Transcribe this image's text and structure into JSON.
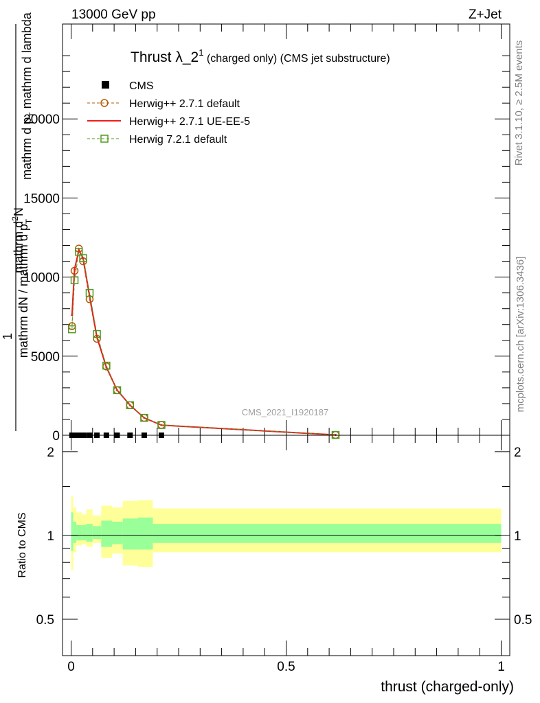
{
  "header": {
    "energy": "13000 GeV pp",
    "process": "Z+Jet"
  },
  "side_labels": {
    "rivet": "Rivet 3.1.10, ≥ 2.5M events",
    "mcplots": "mcplots.cern.ch [arXiv:1306.3436]"
  },
  "watermark": "CMS_2021_I1920187",
  "chart_data": [
    {
      "type": "line",
      "title": {
        "main": "Thrust λ_2",
        "sup": "1",
        "sub": " (charged only) (CMS jet substructure)"
      },
      "ylabel_parts": [
        "mathrm d",
        "2",
        "N",
        "mathrm d p",
        "T",
        "mathrm d lambda",
        "1",
        "mathrm d",
        "N",
        "mathrm d p",
        "T"
      ],
      "xlim": [
        -0.02,
        1.02
      ],
      "ylim": [
        0,
        26000
      ],
      "y_ticks": [
        0,
        5000,
        10000,
        15000,
        20000
      ],
      "y_tick_labels": [
        "0",
        "5000",
        "10000",
        "15000",
        "20000"
      ],
      "legend": {
        "position": "top-left",
        "entries": [
          "CMS",
          "Herwig++ 2.7.1 default",
          "Herwig++ 2.7.1 UE-EE-5",
          "Herwig 7.2.1 default"
        ]
      },
      "series": [
        {
          "name": "CMS",
          "marker": "filled-square",
          "color": "#000000",
          "x": [
            0.002,
            0.008,
            0.015,
            0.022,
            0.03,
            0.043,
            0.06,
            0.082,
            0.107,
            0.137,
            0.17,
            0.21
          ],
          "y": [
            0,
            0,
            0,
            0,
            0,
            0,
            0,
            0,
            0,
            0,
            0,
            0
          ]
        },
        {
          "name": "Herwig++ 2.7.1 default",
          "marker": "open-circle",
          "color": "#b35900",
          "x": [
            0.002,
            0.008,
            0.018,
            0.028,
            0.043,
            0.06,
            0.082,
            0.107,
            0.137,
            0.17,
            0.21,
            0.615
          ],
          "y": [
            6900,
            10400,
            11800,
            11000,
            8600,
            6100,
            4350,
            2850,
            1900,
            1100,
            650,
            20
          ]
        },
        {
          "name": "Herwig++ 2.7.1 UE-EE-5",
          "marker": "line",
          "color": "#ee1c1c",
          "x": [
            0.002,
            0.008,
            0.018,
            0.028,
            0.043,
            0.06,
            0.082,
            0.107,
            0.137,
            0.17,
            0.21,
            0.615
          ],
          "y": [
            7600,
            10500,
            11700,
            11200,
            8800,
            6200,
            4300,
            2850,
            1900,
            1100,
            640,
            20
          ]
        },
        {
          "name": "Herwig 7.2.1 default",
          "marker": "open-square",
          "color": "#4d9a22",
          "x": [
            0.002,
            0.008,
            0.018,
            0.028,
            0.043,
            0.06,
            0.082,
            0.107,
            0.137,
            0.17,
            0.21,
            0.615
          ],
          "y": [
            6700,
            9800,
            11600,
            11200,
            9000,
            6400,
            4400,
            2850,
            1900,
            1100,
            650,
            20
          ]
        }
      ]
    },
    {
      "type": "area",
      "ylabel": "Ratio to CMS",
      "xlabel": "thrust (charged-only)",
      "xlim": [
        -0.02,
        1.02
      ],
      "ylim": [
        0.37,
        2.29
      ],
      "y_scale": "log",
      "y_ticks": [
        0.5,
        1,
        2
      ],
      "y_tick_labels": [
        "0.5",
        "1",
        "2"
      ],
      "x_ticks": [
        0,
        0.5,
        1
      ],
      "x_tick_labels": [
        "0",
        "0.5",
        "1"
      ],
      "reference_line": 1,
      "bands": {
        "bin_edges": [
          0,
          0.005,
          0.012,
          0.025,
          0.035,
          0.05,
          0.07,
          0.095,
          0.12,
          0.155,
          0.19,
          0.23,
          1.0
        ],
        "yellow_low": [
          0.75,
          0.87,
          0.92,
          0.93,
          0.91,
          0.94,
          0.83,
          0.86,
          0.78,
          0.77,
          0.87,
          0.87
        ],
        "yellow_high": [
          1.38,
          1.26,
          1.21,
          1.19,
          1.24,
          1.18,
          1.28,
          1.26,
          1.33,
          1.34,
          1.25,
          1.25
        ],
        "green_low": [
          0.88,
          0.94,
          0.96,
          0.96,
          0.95,
          0.97,
          0.91,
          0.93,
          0.89,
          0.89,
          0.94,
          0.94
        ],
        "green_high": [
          1.21,
          1.12,
          1.09,
          1.09,
          1.1,
          1.08,
          1.13,
          1.12,
          1.15,
          1.16,
          1.1,
          1.1
        ],
        "yellow_color": "#ffff99",
        "green_color": "#99ff99"
      }
    }
  ]
}
